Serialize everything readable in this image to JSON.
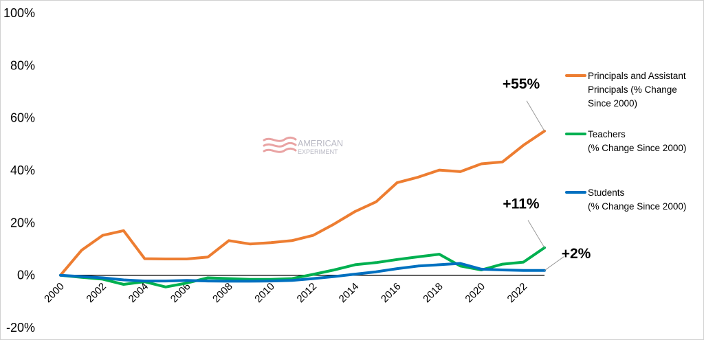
{
  "chart_data": {
    "type": "line",
    "x": [
      2000,
      2001,
      2002,
      2003,
      2004,
      2005,
      2006,
      2007,
      2008,
      2009,
      2010,
      2011,
      2012,
      2013,
      2014,
      2015,
      2016,
      2017,
      2018,
      2019,
      2020,
      2021,
      2022,
      2023
    ],
    "x_tick_labels": [
      "2000",
      "2002",
      "2004",
      "2006",
      "2008",
      "2010",
      "2012",
      "2014",
      "2016",
      "2018",
      "2020",
      "2022"
    ],
    "ylim": [
      -20,
      100
    ],
    "y_tick_labels": [
      "100%",
      "80%",
      "60%",
      "40%",
      "20%",
      "0%",
      "-20%"
    ],
    "grid": false,
    "legend_position": "right",
    "series": [
      {
        "name": "Principals and Assistant Principals (% Change Since 2000)",
        "legend_lines": [
          "Principals and Assistant",
          "Principals (% Change",
          "Since 2000)"
        ],
        "color": "#ED7D31",
        "values": [
          0,
          9.5,
          15.2,
          17,
          6.3,
          6.2,
          6.2,
          6.9,
          13.2,
          11.9,
          12.4,
          13.2,
          15.2,
          19.5,
          24.3,
          28,
          35.3,
          37.4,
          40.1,
          39.5,
          42.5,
          43.2,
          49.6,
          55
        ]
      },
      {
        "name": "Teachers (% Change Since 2000)",
        "legend_lines": [
          "Teachers",
          "(% Change Since 2000)"
        ],
        "color": "#00B050",
        "values": [
          0,
          -0.8,
          -1.5,
          -3.5,
          -2.5,
          -4.5,
          -3,
          -1,
          -1.3,
          -1.6,
          -1.6,
          -1.3,
          0.3,
          2,
          4,
          4.8,
          6,
          7,
          8,
          3.5,
          2,
          4.2,
          5,
          10.5
        ]
      },
      {
        "name": "Students (% Change Since 2000)",
        "legend_lines": [
          "Students",
          "(% Change Since 2000)"
        ],
        "color": "#0070C0",
        "values": [
          0,
          -0.5,
          -1,
          -1.8,
          -2.2,
          -2.2,
          -2,
          -2.2,
          -2.3,
          -2.3,
          -2.2,
          -2,
          -1.3,
          -0.5,
          0.4,
          1.3,
          2.5,
          3.5,
          4,
          4.5,
          2.3,
          2,
          1.8,
          1.8
        ]
      }
    ],
    "annotations": [
      {
        "text": "+55%",
        "series": 0
      },
      {
        "text": "+11%",
        "series": 1
      },
      {
        "text": "+2%",
        "series": 2
      }
    ],
    "watermark": {
      "line1": "AMERICAN",
      "line2": "EXPERIMENT"
    }
  }
}
